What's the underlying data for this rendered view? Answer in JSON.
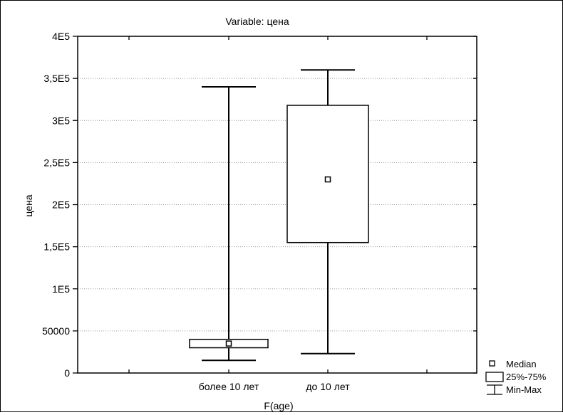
{
  "chart_data": {
    "type": "boxplot",
    "title": "Variable: цена",
    "xlabel": "F(age)",
    "ylabel": "цена",
    "categories": [
      "более 10 лет",
      "до 10 лет"
    ],
    "boxes": [
      {
        "category": "более 10 лет",
        "min": 15000,
        "q1": 30000,
        "median": 35000,
        "q3": 40000,
        "max": 340000
      },
      {
        "category": "до 10 лет",
        "min": 23000,
        "q1": 155000,
        "median": 230000,
        "q3": 318000,
        "max": 360000
      }
    ],
    "ylim": [
      0,
      400000
    ],
    "yticks": [
      0,
      50000,
      100000,
      150000,
      200000,
      250000,
      300000,
      350000,
      400000
    ],
    "ytick_labels": [
      "0",
      "50000",
      "1E5",
      "1,5E5",
      "2E5",
      "2,5E5",
      "3E5",
      "3,5E5",
      "4E5"
    ],
    "grid": true,
    "legend_position": "bottom-right",
    "legend": [
      "Median",
      "25%-75%",
      "Min-Max"
    ]
  }
}
